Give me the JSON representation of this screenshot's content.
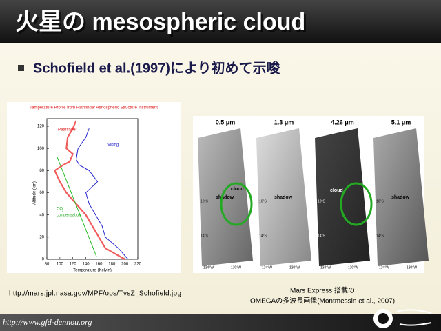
{
  "header": {
    "title": "火星の mesospheric cloud"
  },
  "bullet": "Schofield et al.(1997)により初めて示唆",
  "figure_left": {
    "title": "Temperature Profile from Pathfinder Atmospheric Structure Instrument",
    "legend": [
      "Pathfinder",
      "Viking 1"
    ],
    "co2_label": {
      "text": "CO",
      "subscript": "2",
      "note": "condensation"
    },
    "y_label": "Altitude (km)",
    "x_label": "Temperature (Kelvin)",
    "yticks": [
      "0",
      "20",
      "40",
      "60",
      "80",
      "100",
      "120"
    ],
    "xticks": [
      "80",
      "100",
      "120",
      "140",
      "160",
      "180",
      "200",
      "220"
    ]
  },
  "figure_right": {
    "panels": [
      {
        "label": "0.5 μm",
        "notes": [
          "cloud",
          "shadow"
        ]
      },
      {
        "label": "1.3 μm",
        "notes": [
          "shadow"
        ]
      },
      {
        "label": "4.26 μm",
        "notes": [
          "cloud"
        ]
      },
      {
        "label": "5.1 μm",
        "notes": [
          "shadow"
        ]
      }
    ],
    "lat_labels": [
      "10°S",
      "14°S"
    ],
    "lon_labels": [
      "134°W",
      "130°W"
    ]
  },
  "captions": {
    "left": "http://mars.jpl.nasa.gov/MPF/ops/TvsZ_Schofield.jpg",
    "right": [
      "Mars Express 搭載の",
      "OMEGAの多波長画像(Montmessin et al., 2007)"
    ]
  },
  "footer": {
    "url": "http://www.gfd-dennou.org"
  }
}
